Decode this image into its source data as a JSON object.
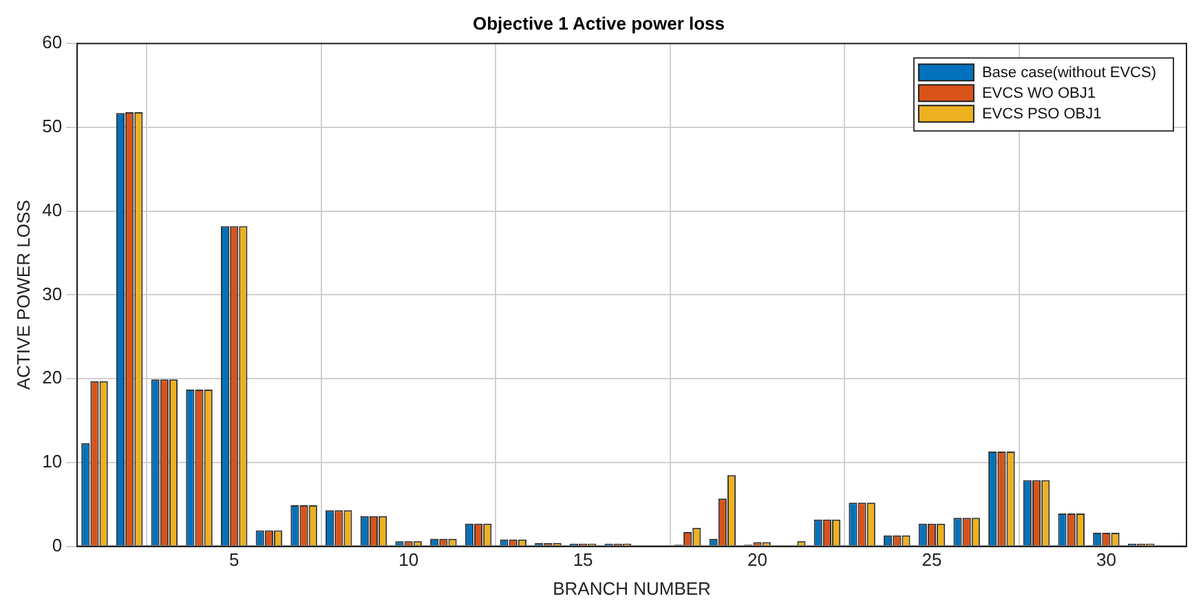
{
  "chart_data": {
    "type": "bar",
    "title": "Objective 1 Active power loss",
    "xlabel": "BRANCH NUMBER",
    "ylabel": "ACTIVE POWER LOSS",
    "x": [
      1,
      2,
      3,
      4,
      5,
      6,
      7,
      8,
      9,
      10,
      11,
      12,
      13,
      14,
      15,
      16,
      17,
      18,
      19,
      20,
      21,
      22,
      23,
      24,
      25,
      26,
      27,
      28,
      29,
      30,
      31
    ],
    "series": [
      {
        "name": "Base case(without EVCS)",
        "color": "#0072bd",
        "values": [
          12.3,
          51.7,
          19.9,
          18.7,
          38.2,
          1.9,
          4.9,
          4.3,
          3.6,
          0.6,
          0.9,
          2.7,
          0.8,
          0.4,
          0.3,
          0.3,
          null,
          0.2,
          0.9,
          0.2,
          0,
          3.2,
          5.2,
          1.3,
          2.7,
          3.4,
          11.3,
          7.9,
          3.9,
          1.6,
          0.3
        ]
      },
      {
        "name": "EVCS WO OBJ1",
        "color": "#d95319",
        "values": [
          19.7,
          51.8,
          19.9,
          18.7,
          38.2,
          1.9,
          4.9,
          4.3,
          3.6,
          0.6,
          0.9,
          2.7,
          0.8,
          0.4,
          0.3,
          0.3,
          null,
          1.7,
          5.7,
          0.5,
          0,
          3.2,
          5.2,
          1.3,
          2.7,
          3.4,
          11.3,
          7.9,
          3.9,
          1.6,
          0.3
        ]
      },
      {
        "name": "EVCS PSO OBJ1",
        "color": "#edb120",
        "values": [
          19.7,
          51.8,
          19.9,
          18.7,
          38.2,
          1.9,
          4.9,
          4.3,
          3.6,
          0.6,
          0.9,
          2.7,
          0.8,
          0.4,
          0.3,
          0.3,
          null,
          2.2,
          8.5,
          0.5,
          0.6,
          3.2,
          5.2,
          1.3,
          2.7,
          3.4,
          11.3,
          7.9,
          3.9,
          1.6,
          0.3
        ]
      }
    ],
    "xlim": [
      0.5,
      32.3
    ],
    "xticks": [
      5,
      10,
      15,
      20,
      25,
      30
    ],
    "ylim": [
      0,
      60
    ],
    "yticks": [
      0,
      10,
      20,
      30,
      40,
      50,
      60
    ],
    "grid": true,
    "legend": "top right"
  }
}
